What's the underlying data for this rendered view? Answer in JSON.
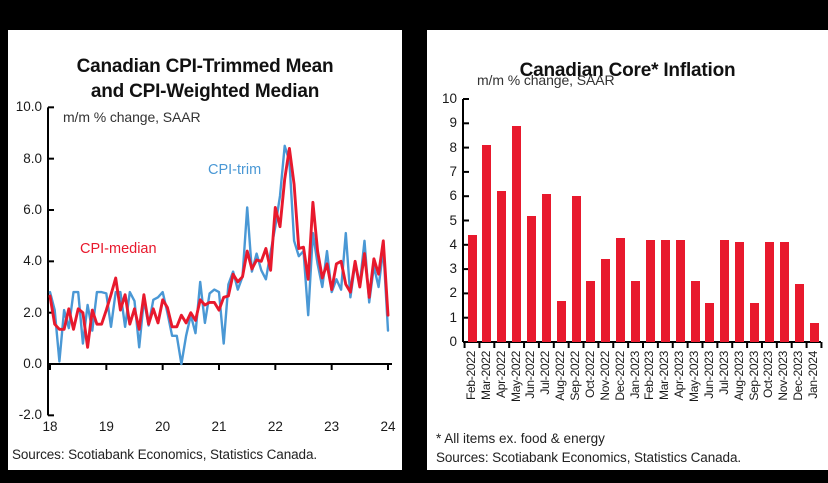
{
  "colors": {
    "page_bg": "#000000",
    "panel_bg": "#ffffff",
    "axis": "#000000",
    "line_blue": "#4a98d5",
    "line_red": "#e8192d",
    "bar_red": "#e8192d",
    "text_dark": "#1a1a1a",
    "text_muted": "#333333"
  },
  "left_chart": {
    "title_line1": "Canadian CPI-Trimmed Mean",
    "title_line2": "and CPI-Weighted Median",
    "subtitle": "m/m % change, SAAR",
    "legend_trim": "CPI-trim",
    "legend_median": "CPI-median",
    "source": "Sources: Scotiabank Economics, Statistics Canada.",
    "y_tick_labels": [
      "10.0",
      "8.0",
      "6.0",
      "4.0",
      "2.0",
      "0.0",
      "-2.0"
    ],
    "x_tick_labels": [
      "18",
      "19",
      "20",
      "21",
      "22",
      "23",
      "24"
    ]
  },
  "right_chart": {
    "title": "Canadian Core* Inflation",
    "subtitle": "m/m % change, SAAR",
    "footnote": "* All items ex. food & energy",
    "source": "Sources: Scotiabank Economics, Statistics Canada.",
    "y_tick_labels": [
      "10",
      "9",
      "8",
      "7",
      "6",
      "5",
      "4",
      "3",
      "2",
      "1",
      "0"
    ]
  },
  "chart_data": [
    {
      "type": "line",
      "title": "Canadian CPI-Trimmed Mean and CPI-Weighted Median",
      "ylabel": "m/m % change, SAAR",
      "ylim": [
        -2,
        10
      ],
      "y_ticks": [
        10,
        8,
        6,
        4,
        2,
        0,
        -2
      ],
      "x_start": "Jan-2018",
      "x_end": "Jan-2024",
      "x_freq": "monthly",
      "n_points": 73,
      "x_axis_tick_labels": [
        "18",
        "19",
        "20",
        "21",
        "22",
        "23",
        "24"
      ],
      "grid": false,
      "legend_position": "inline-labels",
      "series": [
        {
          "name": "CPI-trim",
          "color": "#4a98d5",
          "values": [
            2.8,
            2.1,
            0.1,
            2.1,
            1.4,
            2.8,
            2.8,
            0.8,
            2.3,
            1.3,
            2.8,
            2.8,
            2.75,
            1.45,
            2.8,
            2.8,
            1.45,
            2.8,
            2.45,
            0.65,
            2.5,
            1.5,
            2.5,
            2.6,
            2.8,
            2.0,
            1.1,
            1.1,
            0.0,
            1.1,
            1.9,
            1.2,
            3.2,
            1.6,
            2.75,
            2.9,
            2.8,
            0.8,
            3.1,
            3.6,
            2.9,
            3.4,
            6.1,
            3.6,
            4.3,
            3.65,
            3.3,
            4.35,
            5.35,
            6.55,
            8.5,
            7.9,
            4.8,
            4.2,
            4.4,
            1.9,
            5.1,
            3.9,
            3.0,
            4.4,
            2.8,
            3.3,
            2.9,
            5.1,
            2.6,
            3.9,
            3.1,
            4.8,
            2.4,
            3.8,
            3.0,
            4.5,
            1.3
          ]
        },
        {
          "name": "CPI-median",
          "color": "#e8192d",
          "values": [
            2.65,
            1.55,
            1.35,
            1.35,
            2.15,
            1.35,
            2.15,
            2.0,
            0.65,
            2.1,
            1.55,
            1.55,
            2.1,
            2.7,
            3.35,
            2.1,
            2.7,
            1.55,
            2.15,
            1.35,
            2.7,
            1.55,
            2.15,
            1.6,
            2.5,
            2.2,
            1.45,
            1.45,
            1.9,
            1.6,
            2.0,
            1.7,
            2.5,
            2.3,
            2.4,
            2.4,
            2.1,
            2.6,
            2.65,
            3.5,
            3.2,
            3.4,
            4.4,
            3.7,
            4.05,
            4.0,
            4.5,
            3.65,
            6.1,
            5.35,
            7.2,
            8.4,
            7.0,
            4.5,
            4.55,
            3.3,
            6.3,
            4.4,
            3.35,
            3.9,
            2.9,
            3.9,
            4.0,
            3.1,
            2.8,
            4.0,
            3.0,
            4.3,
            2.6,
            4.1,
            3.5,
            4.8,
            1.9
          ]
        }
      ]
    },
    {
      "type": "bar",
      "title": "Canadian Core* Inflation",
      "ylabel": "m/m % change, SAAR",
      "ylim": [
        0,
        10
      ],
      "y_ticks": [
        10,
        9,
        8,
        7,
        6,
        5,
        4,
        3,
        2,
        1,
        0
      ],
      "bar_color": "#e8192d",
      "grid": false,
      "categories": [
        "Feb-2022",
        "Mar-2022",
        "Apr-2022",
        "May-2022",
        "Jun-2022",
        "Jul-2022",
        "Aug-2022",
        "Sep-2022",
        "Oct-2022",
        "Nov-2022",
        "Dec-2022",
        "Jan-2023",
        "Feb-2023",
        "Mar-2023",
        "Apr-2023",
        "May-2023",
        "Jun-2023",
        "Jul-2023",
        "Aug-2023",
        "Sep-2023",
        "Oct-2023",
        "Nov-2023",
        "Dec-2023",
        "Jan-2024"
      ],
      "values": [
        4.4,
        8.1,
        6.2,
        8.9,
        5.2,
        6.1,
        1.7,
        6.0,
        2.5,
        3.4,
        4.3,
        2.5,
        4.2,
        4.2,
        4.2,
        2.5,
        1.6,
        4.2,
        4.1,
        1.6,
        4.1,
        4.1,
        2.4,
        0.8
      ]
    }
  ]
}
